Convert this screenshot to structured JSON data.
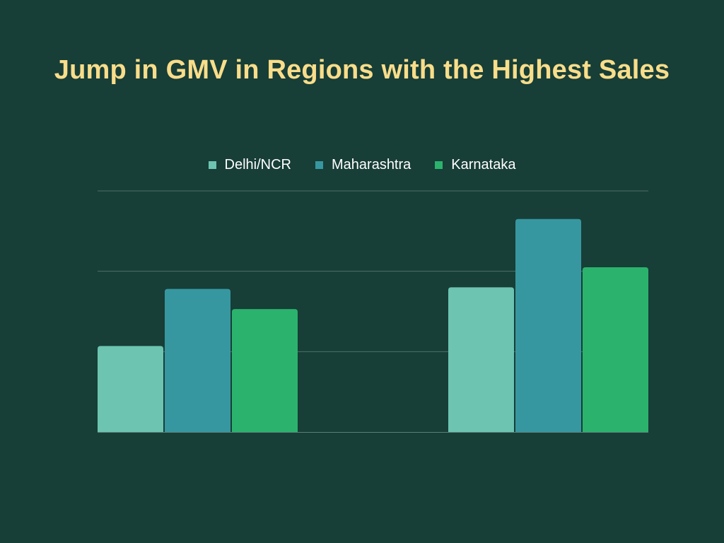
{
  "chart_data": {
    "type": "bar",
    "title": "Jump in GMV in Regions with the Highest Sales",
    "xlabel": "",
    "ylabel": "",
    "categories": [
      "",
      ""
    ],
    "ylim": [
      0,
      3
    ],
    "grid": true,
    "legend_position": "top-center",
    "series": [
      {
        "name": "Delhi/NCR",
        "color": "#6cc4b1",
        "values": [
          1.07,
          1.8
        ]
      },
      {
        "name": "Maharashtra",
        "color": "#3797a0",
        "values": [
          1.78,
          2.65
        ]
      },
      {
        "name": "Karnataka",
        "color": "#2bb36d",
        "values": [
          1.53,
          2.05
        ]
      }
    ]
  }
}
